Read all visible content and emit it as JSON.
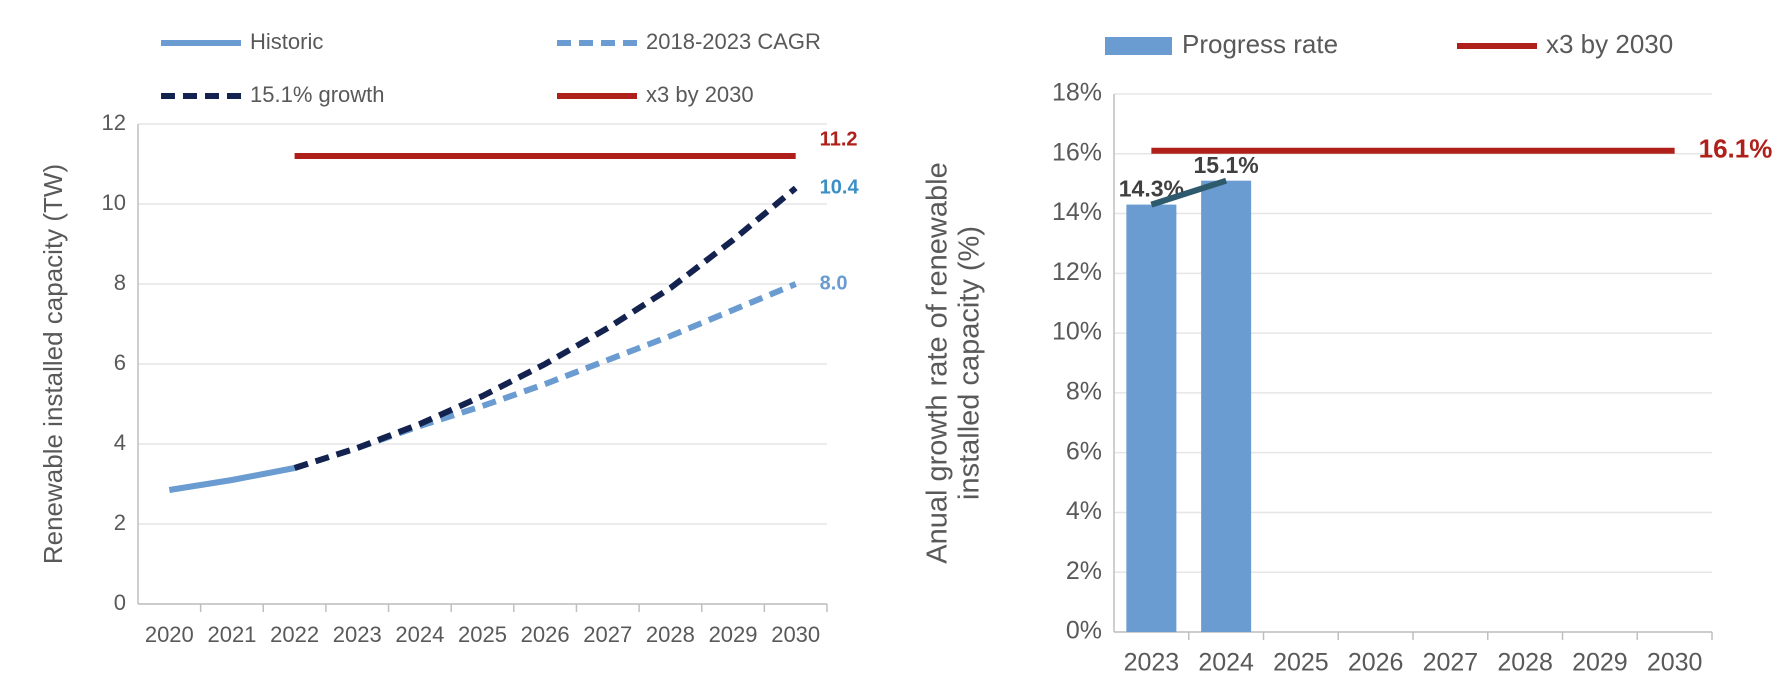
{
  "chart_data": [
    {
      "type": "line",
      "y_label": [
        "Renewable installed capacity (TW)"
      ],
      "categories": [
        "2020",
        "2021",
        "2022",
        "2023",
        "2024",
        "2025",
        "2026",
        "2027",
        "2028",
        "2029",
        "2030"
      ],
      "ylim": [
        0,
        12
      ],
      "yticks": [
        0,
        2,
        4,
        6,
        8,
        10,
        12
      ],
      "grid": true,
      "series": [
        {
          "name": "Historic",
          "color": "#6a9bd1",
          "dashed": false,
          "values": [
            2.85,
            3.1,
            3.4,
            null,
            null,
            null,
            null,
            null,
            null,
            null,
            null
          ]
        },
        {
          "name": "2018-2023 CAGR",
          "color": "#6a9bd1",
          "dashed": true,
          "values": [
            null,
            null,
            3.4,
            3.9,
            4.45,
            4.95,
            5.5,
            6.1,
            6.7,
            7.35,
            8.0
          ],
          "value_labels": [
            null,
            null,
            null,
            null,
            null,
            null,
            null,
            null,
            null,
            null,
            "8.0"
          ]
        },
        {
          "name": "15.1% growth",
          "color": "#14224f",
          "dashed": true,
          "values": [
            null,
            null,
            3.4,
            3.9,
            4.5,
            5.2,
            6.0,
            6.9,
            7.9,
            9.1,
            10.4
          ],
          "label_color": "#3a8fc6"
        },
        {
          "name": "x3 by 2030",
          "color": "#b0201a",
          "dashed": false,
          "values": [
            null,
            null,
            11.2,
            11.2,
            11.2,
            11.2,
            11.2,
            11.2,
            11.2,
            11.2,
            11.2
          ]
        }
      ]
    },
    {
      "type": "bar",
      "y_label": [
        "Anual growth rate of renewable",
        "installed capacity (%)"
      ],
      "categories": [
        "2023",
        "2024",
        "2025",
        "2026",
        "2027",
        "2028",
        "2029",
        "2030"
      ],
      "ylim": [
        0,
        18
      ],
      "yticks": [
        {
          "value": 0,
          "label": "0%"
        },
        {
          "value": 2,
          "label": "2%"
        },
        {
          "value": 4,
          "label": "4%"
        },
        {
          "value": 6,
          "label": "6%"
        },
        {
          "value": 8,
          "label": "8%"
        },
        {
          "value": 10,
          "label": "10%"
        },
        {
          "value": 12,
          "label": "12%"
        },
        {
          "value": 14,
          "label": "14%"
        },
        {
          "value": 16,
          "label": "16%"
        },
        {
          "value": 18,
          "label": "18%"
        }
      ],
      "grid": true,
      "series": [
        {
          "name": "Progress rate",
          "type": "bar",
          "color": "#6a9bd1",
          "values": [
            14.3,
            15.1,
            null,
            null,
            null,
            null,
            null,
            null
          ],
          "value_labels": [
            "14.3%",
            "15.1%",
            null,
            null,
            null,
            null,
            null,
            null
          ]
        },
        {
          "name": "x3 by 2030",
          "type": "line",
          "color": "#b0201a",
          "values": [
            16.1,
            16.1,
            16.1,
            16.1,
            16.1,
            16.1,
            16.1,
            16.1
          ],
          "value_labels": [
            null,
            null,
            null,
            null,
            null,
            null,
            null,
            "16.1%"
          ]
        },
        {
          "type": "line",
          "color": "#2e5a6e",
          "values": [
            14.3,
            15.1,
            null,
            null,
            null,
            null,
            null,
            null
          ]
        }
      ]
    }
  ]
}
